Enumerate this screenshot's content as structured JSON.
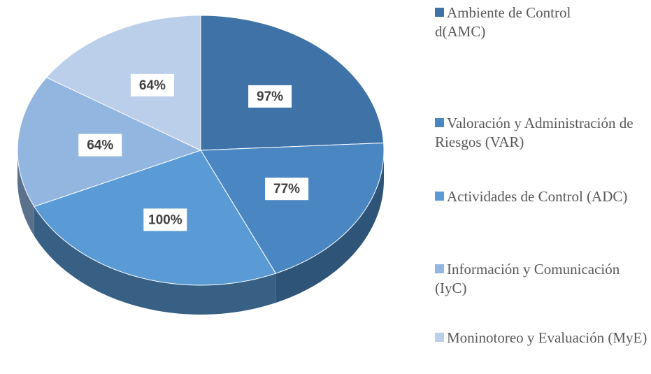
{
  "chart_data": {
    "type": "pie",
    "categories": [
      "Ambiente de Control d(AMC)",
      "Valoración y Administración de Riesgos (VAR)",
      "Actividades de Control (ADC)",
      "Información y Comunicación (IyC)",
      "Moninotoreo y Evaluación (MyE)"
    ],
    "values": [
      97,
      77,
      100,
      64,
      64
    ],
    "value_labels": [
      "97%",
      "77%",
      "100%",
      "64%",
      "64%"
    ],
    "colors": [
      "#3f72a6",
      "#4a87c2",
      "#5b9bd5",
      "#93b6e0",
      "#bccfea"
    ],
    "legend": "right"
  }
}
